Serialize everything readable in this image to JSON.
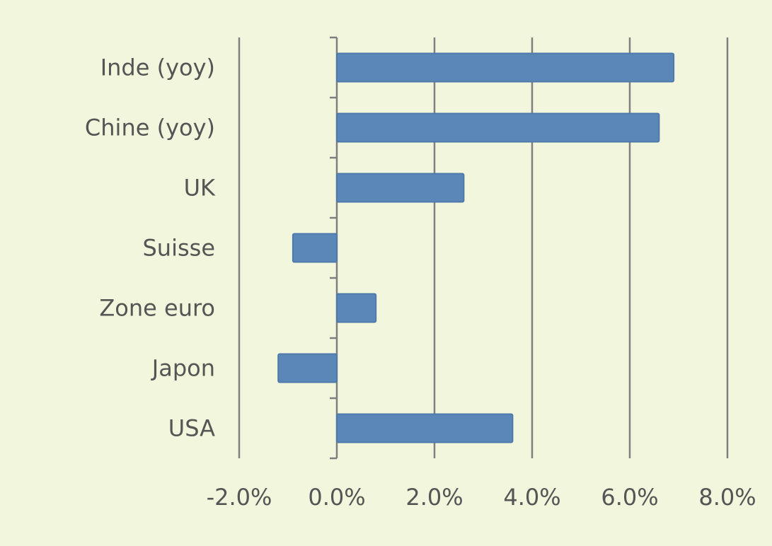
{
  "colors": {
    "background": "#f2f6dc",
    "bar_fill": "#5b87b8",
    "bar_stroke": "#4e79ab",
    "grid": "#7f7f7f",
    "text": "#555555"
  },
  "chart_data": {
    "type": "bar",
    "orientation": "horizontal",
    "categories": [
      "Inde (yoy)",
      "Chine (yoy)",
      "UK",
      "Suisse",
      "Zone euro",
      "Japon",
      "USA"
    ],
    "values": [
      6.9,
      6.6,
      2.6,
      -0.9,
      0.8,
      -1.2,
      3.6
    ],
    "unit": "%",
    "xlim": [
      -2.0,
      8.0
    ],
    "xticks": [
      -2.0,
      0.0,
      2.0,
      4.0,
      6.0,
      8.0
    ],
    "xtick_labels": [
      "-2.0%",
      "0.0%",
      "2.0%",
      "4.0%",
      "6.0%",
      "8.0%"
    ],
    "title": "",
    "xlabel": "",
    "ylabel": "",
    "grid": "vertical",
    "legend": "none"
  }
}
